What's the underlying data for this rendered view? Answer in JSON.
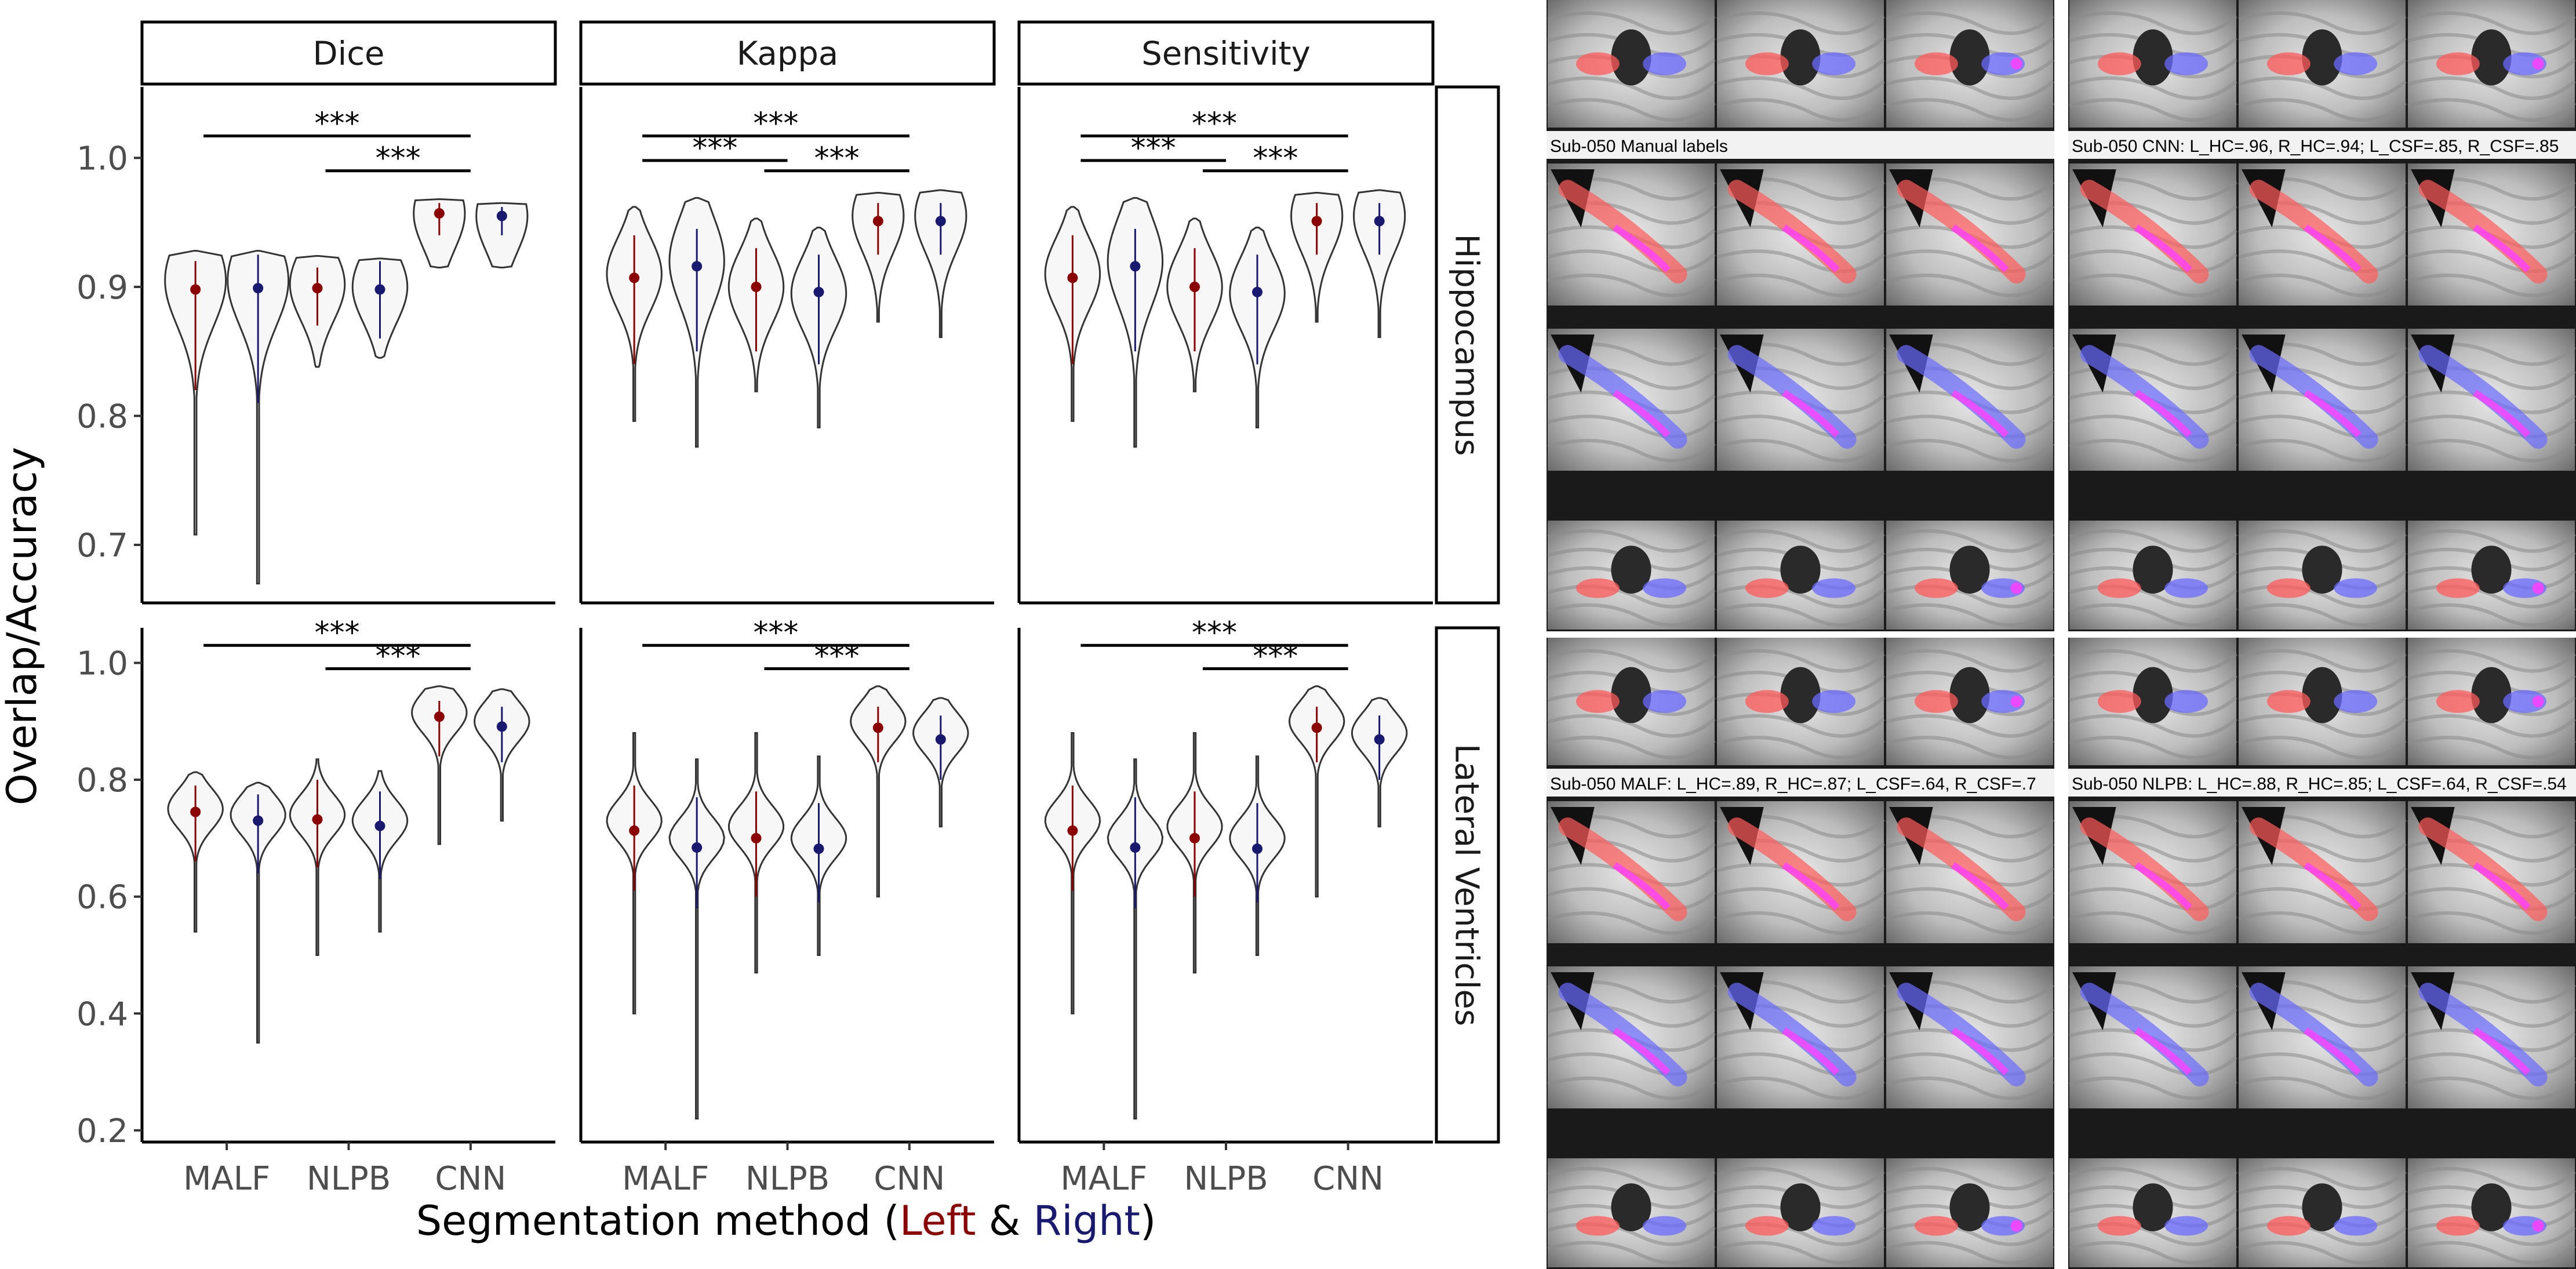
{
  "chart_data": {
    "type": "violin",
    "ylabel": "Overlap/Accuracy",
    "xlabel_parts": [
      {
        "text": "Segmentation method (",
        "color": "#000000"
      },
      {
        "text": "Left",
        "color": "#8b0000"
      },
      {
        "text": " & ",
        "color": "#000000"
      },
      {
        "text": "Right",
        "color": "#191970"
      },
      {
        "text": ")",
        "color": "#000000"
      }
    ],
    "colors": {
      "left": "#8b0000",
      "right": "#191970",
      "violin_fill": "#f7f7f7",
      "violin_stroke": "#333333"
    },
    "methods": [
      "MALF",
      "NLPB",
      "CNN"
    ],
    "hemispheres": [
      "Left",
      "Right"
    ],
    "metrics": [
      "Dice",
      "Kappa",
      "Sensitivity"
    ],
    "regions": [
      "Hippocampus",
      "Lateral Ventricles"
    ],
    "significance_label": "***",
    "panels": [
      {
        "metric": "Dice",
        "region": "Hippocampus",
        "ylim": [
          0.655,
          1.055
        ],
        "yticks": [
          0.7,
          0.8,
          0.9,
          1.0
        ],
        "violins": [
          {
            "method": "MALF",
            "side": "Left",
            "median": 0.898,
            "q1": 0.82,
            "q3": 0.92,
            "min": 0.708,
            "max": 0.928,
            "mode": 0.905,
            "width": 0.5
          },
          {
            "method": "MALF",
            "side": "Right",
            "median": 0.899,
            "q1": 0.81,
            "q3": 0.925,
            "min": 0.67,
            "max": 0.928,
            "mode": 0.905,
            "width": 0.5
          },
          {
            "method": "NLPB",
            "side": "Left",
            "median": 0.899,
            "q1": 0.87,
            "q3": 0.915,
            "min": 0.838,
            "max": 0.924,
            "mode": 0.902,
            "width": 0.45
          },
          {
            "method": "NLPB",
            "side": "Right",
            "median": 0.898,
            "q1": 0.86,
            "q3": 0.92,
            "min": 0.845,
            "max": 0.922,
            "mode": 0.9,
            "width": 0.45
          },
          {
            "method": "CNN",
            "side": "Left",
            "median": 0.957,
            "q1": 0.94,
            "q3": 0.965,
            "min": 0.915,
            "max": 0.968,
            "mode": 0.957,
            "width": 0.42
          },
          {
            "method": "CNN",
            "side": "Right",
            "median": 0.955,
            "q1": 0.94,
            "q3": 0.962,
            "min": 0.915,
            "max": 0.965,
            "mode": 0.955,
            "width": 0.42
          }
        ],
        "brackets": [
          {
            "from": "MALF",
            "to": "CNN",
            "y": 1.017
          },
          {
            "from": "NLPB",
            "to": "CNN",
            "y": 0.99
          }
        ]
      },
      {
        "metric": "Kappa",
        "region": "Hippocampus",
        "ylim": [
          0.655,
          1.055
        ],
        "yticks": [
          0.7,
          0.8,
          0.9,
          1.0
        ],
        "violins": [
          {
            "method": "MALF",
            "side": "Left",
            "median": 0.907,
            "q1": 0.84,
            "q3": 0.94,
            "min": 0.796,
            "max": 0.962,
            "mode": 0.91,
            "width": 0.45
          },
          {
            "method": "MALF",
            "side": "Right",
            "median": 0.916,
            "q1": 0.85,
            "q3": 0.945,
            "min": 0.776,
            "max": 0.969,
            "mode": 0.92,
            "width": 0.45
          },
          {
            "method": "NLPB",
            "side": "Left",
            "median": 0.9,
            "q1": 0.85,
            "q3": 0.93,
            "min": 0.819,
            "max": 0.953,
            "mode": 0.9,
            "width": 0.45
          },
          {
            "method": "NLPB",
            "side": "Right",
            "median": 0.896,
            "q1": 0.84,
            "q3": 0.925,
            "min": 0.791,
            "max": 0.946,
            "mode": 0.895,
            "width": 0.45
          },
          {
            "method": "CNN",
            "side": "Left",
            "median": 0.951,
            "q1": 0.925,
            "q3": 0.965,
            "min": 0.873,
            "max": 0.973,
            "mode": 0.955,
            "width": 0.42
          },
          {
            "method": "CNN",
            "side": "Right",
            "median": 0.951,
            "q1": 0.925,
            "q3": 0.965,
            "min": 0.861,
            "max": 0.975,
            "mode": 0.955,
            "width": 0.42
          }
        ],
        "brackets": [
          {
            "from": "MALF",
            "to": "CNN",
            "y": 1.017
          },
          {
            "from": "MALF",
            "to": "NLPB",
            "y": 0.998
          },
          {
            "from": "NLPB",
            "to": "CNN",
            "y": 0.99
          }
        ]
      },
      {
        "metric": "Sensitivity",
        "region": "Hippocampus",
        "ylim": [
          0.655,
          1.055
        ],
        "yticks": [
          0.7,
          0.8,
          0.9,
          1.0
        ],
        "violins": [
          {
            "method": "MALF",
            "side": "Left",
            "median": 0.907,
            "q1": 0.84,
            "q3": 0.94,
            "min": 0.796,
            "max": 0.962,
            "mode": 0.91,
            "width": 0.45
          },
          {
            "method": "MALF",
            "side": "Right",
            "median": 0.916,
            "q1": 0.85,
            "q3": 0.945,
            "min": 0.776,
            "max": 0.969,
            "mode": 0.92,
            "width": 0.45
          },
          {
            "method": "NLPB",
            "side": "Left",
            "median": 0.9,
            "q1": 0.85,
            "q3": 0.93,
            "min": 0.819,
            "max": 0.953,
            "mode": 0.9,
            "width": 0.45
          },
          {
            "method": "NLPB",
            "side": "Right",
            "median": 0.896,
            "q1": 0.84,
            "q3": 0.925,
            "min": 0.791,
            "max": 0.946,
            "mode": 0.895,
            "width": 0.45
          },
          {
            "method": "CNN",
            "side": "Left",
            "median": 0.951,
            "q1": 0.925,
            "q3": 0.965,
            "min": 0.873,
            "max": 0.973,
            "mode": 0.955,
            "width": 0.42
          },
          {
            "method": "CNN",
            "side": "Right",
            "median": 0.951,
            "q1": 0.925,
            "q3": 0.965,
            "min": 0.861,
            "max": 0.975,
            "mode": 0.955,
            "width": 0.42
          }
        ],
        "brackets": [
          {
            "from": "MALF",
            "to": "CNN",
            "y": 1.017
          },
          {
            "from": "MALF",
            "to": "NLPB",
            "y": 0.998
          },
          {
            "from": "NLPB",
            "to": "CNN",
            "y": 0.99
          }
        ]
      },
      {
        "metric": "Dice",
        "region": "Lateral Ventricles",
        "ylim": [
          0.18,
          1.06
        ],
        "yticks": [
          0.2,
          0.4,
          0.6,
          0.8,
          1.0
        ],
        "violins": [
          {
            "method": "MALF",
            "side": "Left",
            "median": 0.745,
            "q1": 0.66,
            "q3": 0.79,
            "min": 0.54,
            "max": 0.813,
            "mode": 0.75,
            "width": 0.45
          },
          {
            "method": "MALF",
            "side": "Right",
            "median": 0.73,
            "q1": 0.64,
            "q3": 0.775,
            "min": 0.35,
            "max": 0.795,
            "mode": 0.74,
            "width": 0.45
          },
          {
            "method": "NLPB",
            "side": "Left",
            "median": 0.732,
            "q1": 0.65,
            "q3": 0.8,
            "min": 0.5,
            "max": 0.835,
            "mode": 0.74,
            "width": 0.45
          },
          {
            "method": "NLPB",
            "side": "Right",
            "median": 0.721,
            "q1": 0.63,
            "q3": 0.78,
            "min": 0.54,
            "max": 0.815,
            "mode": 0.73,
            "width": 0.45
          },
          {
            "method": "CNN",
            "side": "Left",
            "median": 0.908,
            "q1": 0.84,
            "q3": 0.935,
            "min": 0.69,
            "max": 0.96,
            "mode": 0.915,
            "width": 0.45
          },
          {
            "method": "CNN",
            "side": "Right",
            "median": 0.891,
            "q1": 0.83,
            "q3": 0.925,
            "min": 0.73,
            "max": 0.955,
            "mode": 0.9,
            "width": 0.45
          }
        ],
        "brackets": [
          {
            "from": "MALF",
            "to": "CNN",
            "y": 1.03
          },
          {
            "from": "NLPB",
            "to": "CNN",
            "y": 0.99
          }
        ]
      },
      {
        "metric": "Kappa",
        "region": "Lateral Ventricles",
        "ylim": [
          0.18,
          1.06
        ],
        "yticks": [
          0.2,
          0.4,
          0.6,
          0.8,
          1.0
        ],
        "violins": [
          {
            "method": "MALF",
            "side": "Left",
            "median": 0.713,
            "q1": 0.61,
            "q3": 0.79,
            "min": 0.4,
            "max": 0.88,
            "mode": 0.73,
            "width": 0.45
          },
          {
            "method": "MALF",
            "side": "Right",
            "median": 0.684,
            "q1": 0.58,
            "q3": 0.77,
            "min": 0.22,
            "max": 0.835,
            "mode": 0.7,
            "width": 0.45
          },
          {
            "method": "NLPB",
            "side": "Left",
            "median": 0.7,
            "q1": 0.6,
            "q3": 0.78,
            "min": 0.47,
            "max": 0.88,
            "mode": 0.72,
            "width": 0.45
          },
          {
            "method": "NLPB",
            "side": "Right",
            "median": 0.682,
            "q1": 0.59,
            "q3": 0.76,
            "min": 0.5,
            "max": 0.84,
            "mode": 0.7,
            "width": 0.45
          },
          {
            "method": "CNN",
            "side": "Left",
            "median": 0.889,
            "q1": 0.83,
            "q3": 0.925,
            "min": 0.6,
            "max": 0.96,
            "mode": 0.9,
            "width": 0.45
          },
          {
            "method": "CNN",
            "side": "Right",
            "median": 0.869,
            "q1": 0.8,
            "q3": 0.91,
            "min": 0.72,
            "max": 0.94,
            "mode": 0.88,
            "width": 0.45
          }
        ],
        "brackets": [
          {
            "from": "MALF",
            "to": "CNN",
            "y": 1.03
          },
          {
            "from": "NLPB",
            "to": "CNN",
            "y": 0.99
          }
        ]
      },
      {
        "metric": "Sensitivity",
        "region": "Lateral Ventricles",
        "ylim": [
          0.18,
          1.06
        ],
        "yticks": [
          0.2,
          0.4,
          0.6,
          0.8,
          1.0
        ],
        "violins": [
          {
            "method": "MALF",
            "side": "Left",
            "median": 0.713,
            "q1": 0.61,
            "q3": 0.79,
            "min": 0.4,
            "max": 0.88,
            "mode": 0.73,
            "width": 0.45
          },
          {
            "method": "MALF",
            "side": "Right",
            "median": 0.684,
            "q1": 0.58,
            "q3": 0.77,
            "min": 0.22,
            "max": 0.835,
            "mode": 0.7,
            "width": 0.45
          },
          {
            "method": "NLPB",
            "side": "Left",
            "median": 0.7,
            "q1": 0.6,
            "q3": 0.78,
            "min": 0.47,
            "max": 0.88,
            "mode": 0.72,
            "width": 0.45
          },
          {
            "method": "NLPB",
            "side": "Right",
            "median": 0.682,
            "q1": 0.59,
            "q3": 0.76,
            "min": 0.5,
            "max": 0.84,
            "mode": 0.7,
            "width": 0.45
          },
          {
            "method": "CNN",
            "side": "Left",
            "median": 0.889,
            "q1": 0.83,
            "q3": 0.925,
            "min": 0.6,
            "max": 0.96,
            "mode": 0.9,
            "width": 0.45
          },
          {
            "method": "CNN",
            "side": "Right",
            "median": 0.869,
            "q1": 0.8,
            "q3": 0.91,
            "min": 0.72,
            "max": 0.94,
            "mode": 0.88,
            "width": 0.45
          }
        ],
        "brackets": [
          {
            "from": "MALF",
            "to": "CNN",
            "y": 1.03
          },
          {
            "from": "NLPB",
            "to": "CNN",
            "y": 0.99
          }
        ]
      }
    ]
  },
  "mri_panels": {
    "captions": [
      "Sub-050 Manual labels",
      "Sub-050 CNN: L_HC=.96, R_HC=.94; L_CSF=.85, R_CSF=.85",
      "Sub-050 MALF: L_HC=.89, R_HC=.87; L_CSF=.64, R_CSF=.7",
      "Sub-050 NLPB: L_HC=.88, R_HC=.85; L_CSF=.64, R_CSF=.54"
    ],
    "overlay_colors": {
      "left_label": "#ff5a5a",
      "right_label": "#6a6aff",
      "overlap": "#ff40ff"
    }
  }
}
